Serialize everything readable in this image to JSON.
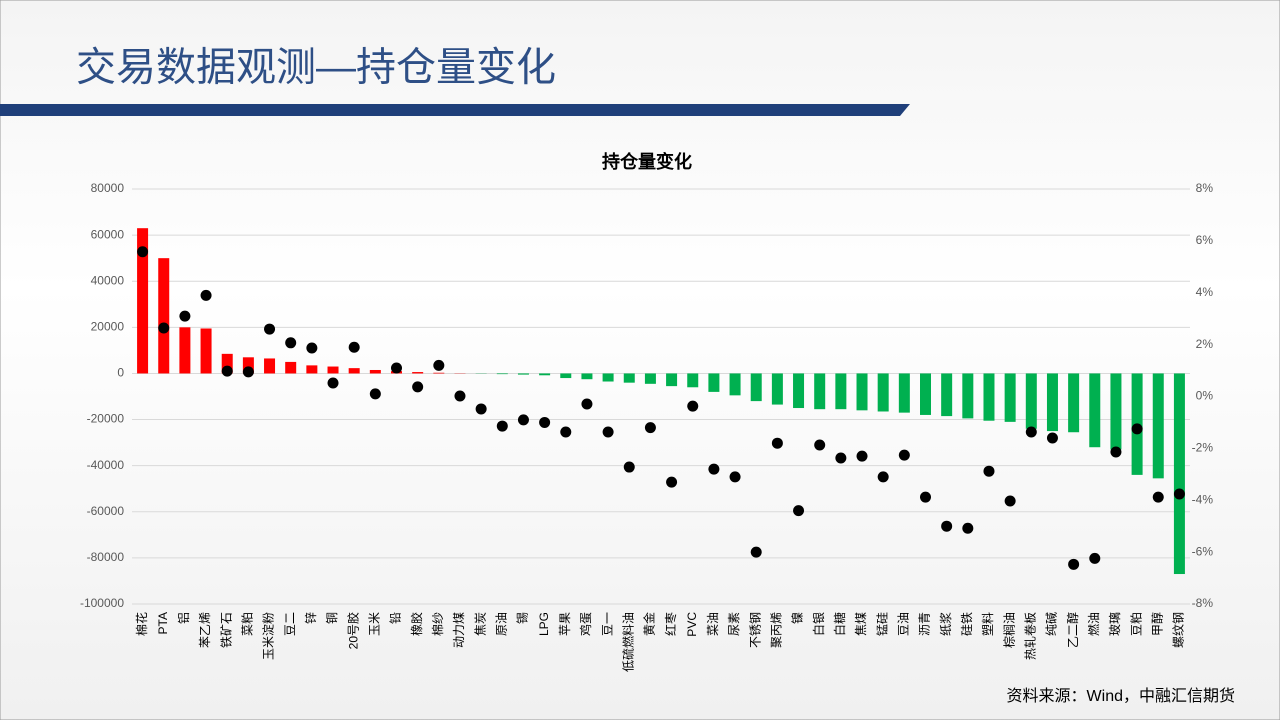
{
  "header": {
    "title": "交易数据观测—持仓量变化"
  },
  "chart_data": {
    "type": "bar-dot",
    "title": "持仓量变化",
    "categories": [
      "棉花",
      "PTA",
      "铝",
      "苯乙烯",
      "铁矿石",
      "菜粕",
      "玉米淀粉",
      "豆二",
      "锌",
      "铜",
      "20号胶",
      "玉米",
      "铅",
      "橡胶",
      "棉纱",
      "动力煤",
      "焦炭",
      "原油",
      "锡",
      "LPG",
      "苹果",
      "鸡蛋",
      "豆一",
      "低硫燃料油",
      "黄金",
      "红枣",
      "PVC",
      "菜油",
      "尿素",
      "不锈钢",
      "聚丙烯",
      "镍",
      "白银",
      "白糖",
      "焦煤",
      "锰硅",
      "豆油",
      "沥青",
      "纸浆",
      "硅铁",
      "塑料",
      "棕榈油",
      "热轧卷板",
      "纯碱",
      "乙二醇",
      "燃油",
      "玻璃",
      "豆粕",
      "甲醇",
      "螺纹钢"
    ],
    "series": [
      {
        "colors": {
          "positive": "#ff0000",
          "negative": "#00b050"
        },
        "values": [
          63000,
          50000,
          20000,
          19500,
          8500,
          7000,
          6500,
          5000,
          3500,
          3000,
          2300,
          1500,
          1000,
          600,
          300,
          100,
          -100,
          -300,
          -500,
          -800,
          -2000,
          -2500,
          -3500,
          -4000,
          -4500,
          -5500,
          -6000,
          -8000,
          -9500,
          -12000,
          -13500,
          -15000,
          -15500,
          -15500,
          -16000,
          -16500,
          -17000,
          -18000,
          -18500,
          -19500,
          -20500,
          -21000,
          -24000,
          -25000,
          -25500,
          -32000,
          -33000,
          -44000,
          -45500,
          -87000
        ]
      },
      {
        "color": "#000000",
        "axis": "y2",
        "values": [
          5.58,
          2.64,
          3.1,
          3.9,
          0.98,
          0.95,
          2.6,
          2.07,
          1.87,
          0.52,
          1.9,
          0.1,
          1.1,
          0.37,
          1.2,
          0.02,
          -0.48,
          -1.14,
          -0.9,
          -1.0,
          -1.37,
          -0.29,
          -1.37,
          -2.72,
          -1.2,
          -3.3,
          -0.37,
          -2.8,
          -3.1,
          -6.0,
          -1.8,
          -4.4,
          -1.87,
          -2.37,
          -2.3,
          -3.1,
          -2.26,
          -3.88,
          -5.0,
          -5.08,
          -2.88,
          -4.03,
          -1.37,
          -1.6,
          -6.47,
          -6.24,
          -2.14,
          -1.25,
          -3.88,
          -3.76
        ]
      }
    ],
    "ylim": [
      -100000,
      80000
    ],
    "yticks": [
      -100000,
      -80000,
      -60000,
      -40000,
      -20000,
      0,
      20000,
      40000,
      60000,
      80000
    ],
    "y2lim": [
      -8,
      8
    ],
    "y2ticks": [
      {
        "value": -8,
        "label": "-8%"
      },
      {
        "value": -6,
        "label": "-6%"
      },
      {
        "value": -4,
        "label": "-4%"
      },
      {
        "value": -2,
        "label": "-2%"
      },
      {
        "value": 0,
        "label": "0%"
      },
      {
        "value": 2,
        "label": "2%"
      },
      {
        "value": 4,
        "label": "4%"
      },
      {
        "value": 6,
        "label": "6%"
      },
      {
        "value": 8,
        "label": "8%"
      }
    ],
    "grid": true
  },
  "footer": {
    "source": "资料来源：Wind，中融汇信期货"
  }
}
